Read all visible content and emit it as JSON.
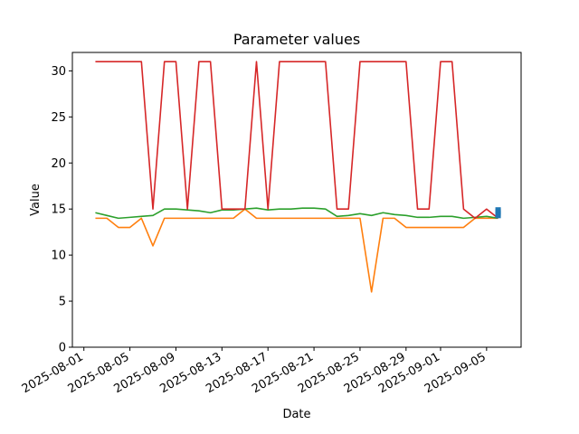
{
  "chart_data": {
    "type": "line",
    "title": "Parameter values",
    "xlabel": "Date",
    "ylabel": "Value",
    "ylim": [
      0,
      32
    ],
    "xlim": [
      "2025-07-31",
      "2025-09-08"
    ],
    "yticks": [
      0,
      5,
      10,
      15,
      20,
      25,
      30
    ],
    "xticks": [
      "2025-08-01",
      "2025-08-05",
      "2025-08-09",
      "2025-08-13",
      "2025-08-17",
      "2025-08-21",
      "2025-08-25",
      "2025-08-29",
      "2025-09-01",
      "2025-09-05"
    ],
    "grid": false,
    "x": [
      "2025-08-02",
      "2025-08-03",
      "2025-08-04",
      "2025-08-05",
      "2025-08-06",
      "2025-08-07",
      "2025-08-08",
      "2025-08-09",
      "2025-08-10",
      "2025-08-11",
      "2025-08-12",
      "2025-08-13",
      "2025-08-14",
      "2025-08-15",
      "2025-08-16",
      "2025-08-17",
      "2025-08-18",
      "2025-08-19",
      "2025-08-20",
      "2025-08-21",
      "2025-08-22",
      "2025-08-23",
      "2025-08-24",
      "2025-08-25",
      "2025-08-26",
      "2025-08-27",
      "2025-08-28",
      "2025-08-29",
      "2025-08-30",
      "2025-08-31",
      "2025-09-01",
      "2025-09-02",
      "2025-09-03",
      "2025-09-04",
      "2025-09-05",
      "2025-09-06"
    ],
    "series": [
      {
        "color": "#ff7f0e",
        "values": [
          14,
          14,
          13,
          13,
          14,
          11,
          14,
          14,
          14,
          14,
          14,
          14,
          14,
          15,
          14,
          14,
          14,
          14,
          14,
          14,
          14,
          14,
          14,
          14,
          6,
          14,
          14,
          13,
          13,
          13,
          13,
          13,
          13,
          14,
          14,
          14
        ]
      },
      {
        "color": "#2ca02c",
        "values": [
          14.6,
          14.3,
          14.0,
          14.1,
          14.2,
          14.3,
          15.0,
          15.0,
          14.9,
          14.8,
          14.6,
          14.9,
          14.9,
          15.0,
          15.1,
          14.9,
          15.0,
          15.0,
          15.1,
          15.1,
          15.0,
          14.2,
          14.3,
          14.5,
          14.3,
          14.6,
          14.4,
          14.3,
          14.1,
          14.1,
          14.2,
          14.2,
          14.0,
          14.1,
          14.2,
          14.0
        ]
      },
      {
        "color": "#d62728",
        "values": [
          31,
          31,
          31,
          31,
          31,
          15,
          31,
          31,
          15,
          31,
          31,
          15,
          15,
          15,
          31,
          15,
          31,
          31,
          31,
          31,
          31,
          15,
          15,
          31,
          31,
          31,
          31,
          31,
          15,
          15,
          31,
          31,
          15,
          14,
          15,
          14
        ]
      }
    ],
    "markers": {
      "color": "#1f77b4",
      "x": "2025-09-06",
      "y": [
        14.3,
        14.5,
        14.7,
        14.9
      ]
    }
  }
}
